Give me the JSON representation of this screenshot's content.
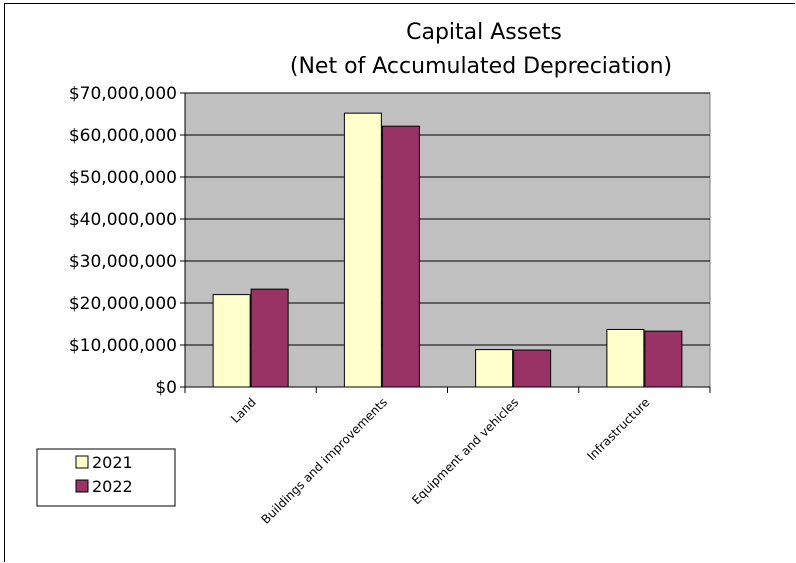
{
  "chart_data": {
    "type": "bar",
    "title": "Capital Assets",
    "subtitle": "(Net of Accumulated Depreciation)",
    "xlabel": "",
    "ylabel": "",
    "categories": [
      "Land",
      "Buildings and improvements",
      "Equipment and vehicles",
      "Infrastructure"
    ],
    "series": [
      {
        "name": "2021",
        "values": [
          22000000,
          65200000,
          8900000,
          13700000
        ],
        "color": "#FFFFCC"
      },
      {
        "name": "2022",
        "values": [
          23300000,
          62100000,
          8800000,
          13300000
        ],
        "color": "#993366"
      }
    ],
    "ylim": [
      0,
      70000000
    ],
    "yticks": [
      0,
      10000000,
      20000000,
      30000000,
      40000000,
      50000000,
      60000000,
      70000000
    ],
    "ytick_labels": [
      "$0",
      "$10,000,000",
      "$20,000,000",
      "$30,000,000",
      "$40,000,000",
      "$50,000,000",
      "$60,000,000",
      "$70,000,000"
    ],
    "grid": true,
    "plot_background": "#C0C0C0",
    "legend_position": "bottom-left"
  }
}
